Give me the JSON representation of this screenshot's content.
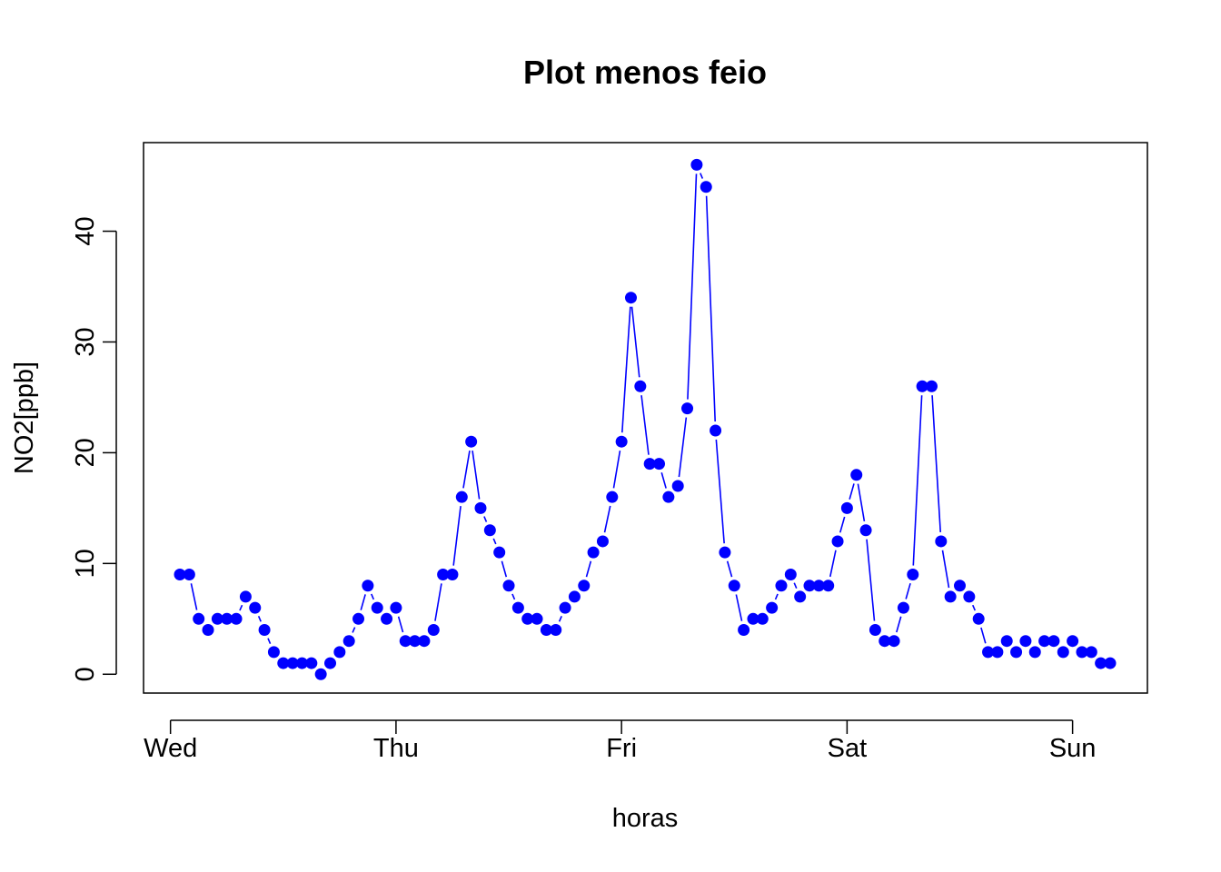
{
  "chart_data": {
    "type": "line",
    "title": "Plot menos feio",
    "xlabel": "horas",
    "ylabel": "NO2[ppb]",
    "x_ticks": [
      "Wed",
      "Thu",
      "Fri",
      "Sat",
      "Sun"
    ],
    "y_ticks": [
      "0",
      "10",
      "20",
      "30",
      "40"
    ],
    "ylim": [
      -1.7,
      48.0
    ],
    "grid": false,
    "legend": "none",
    "line_style": "points connected by lines (type b)",
    "series": [
      {
        "color": "#0000ff",
        "values": [
          9,
          9,
          5,
          4,
          5,
          5,
          5,
          7,
          6,
          4,
          2,
          1,
          1,
          1,
          1,
          0,
          1,
          2,
          3,
          5,
          8,
          6,
          5,
          6,
          3,
          3,
          3,
          4,
          9,
          9,
          16,
          21,
          15,
          13,
          11,
          8,
          6,
          5,
          5,
          4,
          4,
          6,
          7,
          8,
          11,
          12,
          16,
          21,
          34,
          26,
          19,
          19,
          16,
          17,
          24,
          46,
          44,
          22,
          11,
          8,
          4,
          5,
          5,
          6,
          8,
          9,
          7,
          8,
          8,
          8,
          12,
          15,
          18,
          13,
          4,
          3,
          3,
          6,
          9,
          26,
          26,
          12,
          7,
          8,
          7,
          5,
          2,
          2,
          3,
          2,
          3,
          2,
          3,
          3,
          2,
          3,
          2,
          2,
          1,
          1
        ]
      }
    ]
  }
}
